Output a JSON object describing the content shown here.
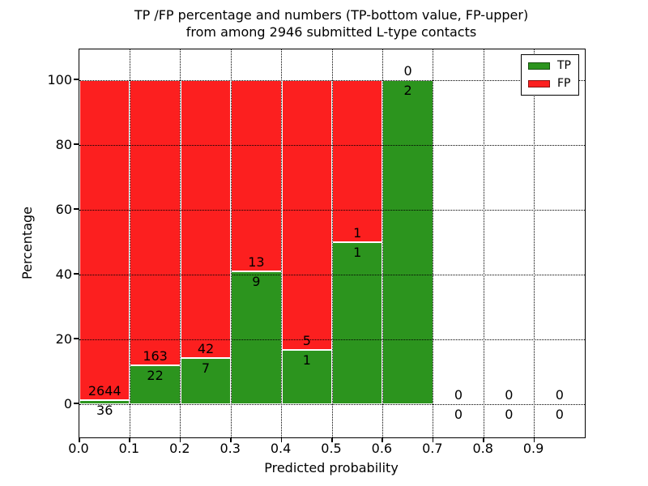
{
  "title": {
    "line1": "TP /FP percentage and numbers (TP-bottom value, FP-upper)",
    "line2": "from among 2946 submitted L-type contacts"
  },
  "axes": {
    "xlabel": "Predicted probability",
    "ylabel": "Percentage"
  },
  "legend": {
    "items": [
      {
        "label": "TP",
        "color": "#2C941E"
      },
      {
        "label": "FP",
        "color": "#FC1F1F"
      }
    ]
  },
  "colors": {
    "tp": "#2C941E",
    "fp": "#FC1F1F",
    "bar_edge": "#FFFFFF",
    "grid": "#000000",
    "frame": "#000000",
    "background": "#FFFFFF",
    "text": "#000000"
  },
  "chart_data": {
    "type": "bar",
    "stacked": true,
    "title": "TP /FP percentage and numbers (TP-bottom value, FP-upper) from among 2946 submitted L-type contacts",
    "xlabel": "Predicted probability",
    "ylabel": "Percentage",
    "xlim": [
      0.0,
      1.0
    ],
    "ylim": [
      -10.5,
      109.5
    ],
    "bin_width": 0.1,
    "grid": "dotted both axes, drawn over bars",
    "legend_position": "upper right",
    "x_tick_labels": [
      "0.0",
      "0.1",
      "0.2",
      "0.3",
      "0.4",
      "0.5",
      "0.6",
      "0.7",
      "0.8",
      "0.9"
    ],
    "y_ticks": [
      0,
      20,
      40,
      60,
      80,
      100
    ],
    "total_contacts": 2946,
    "series": [
      {
        "name": "TP",
        "color": "#2C941E",
        "counts": [
          36,
          22,
          7,
          9,
          1,
          1,
          2,
          0,
          0,
          0
        ]
      },
      {
        "name": "FP",
        "color": "#FC1F1F",
        "counts": [
          2644,
          163,
          42,
          13,
          5,
          1,
          0,
          0,
          0,
          0
        ]
      }
    ],
    "tp_percent": [
      1.34,
      11.89,
      14.29,
      40.91,
      16.67,
      50.0,
      100.0,
      0,
      0,
      0
    ]
  }
}
